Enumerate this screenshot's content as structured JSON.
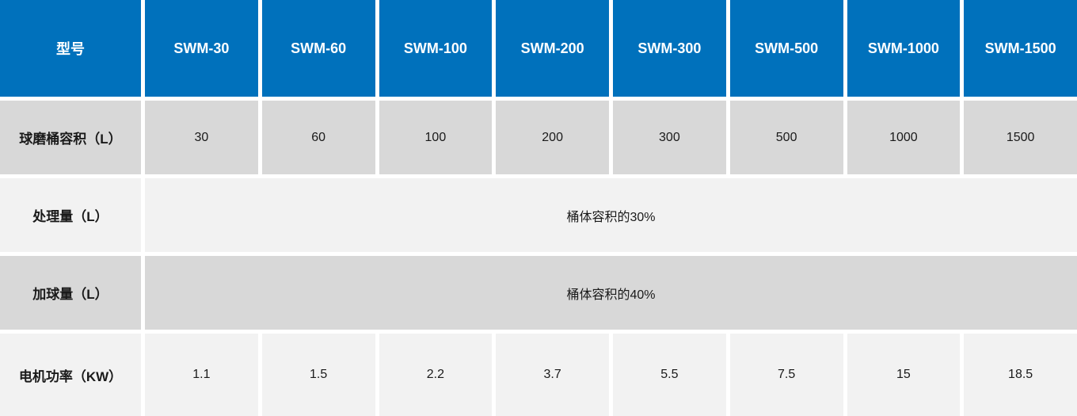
{
  "chart_data": {
    "type": "table",
    "columns": [
      "型号",
      "SWM-30",
      "SWM-60",
      "SWM-100",
      "SWM-200",
      "SWM-300",
      "SWM-500",
      "SWM-1000",
      "SWM-1500"
    ],
    "rows": [
      {
        "label": "球磨桶容积（L）",
        "values": [
          "30",
          "60",
          "100",
          "200",
          "300",
          "500",
          "1000",
          "1500"
        ]
      },
      {
        "label": "处理量（L）",
        "merged_value": "桶体容积的30%"
      },
      {
        "label": "加球量（L）",
        "merged_value": "桶体容积的40%"
      },
      {
        "label": "电机功率（KW）",
        "values": [
          "1.1",
          "1.5",
          "2.2",
          "3.7",
          "5.5",
          "7.5",
          "15",
          "18.5"
        ]
      }
    ]
  },
  "colors": {
    "header_bg": "#0071bc",
    "header_text": "#ffffff",
    "row_alt_bg": "#d8d8d8",
    "row_bg": "#f2f2f2",
    "divider": "#ffffff",
    "body_text": "#1a1a1a"
  }
}
